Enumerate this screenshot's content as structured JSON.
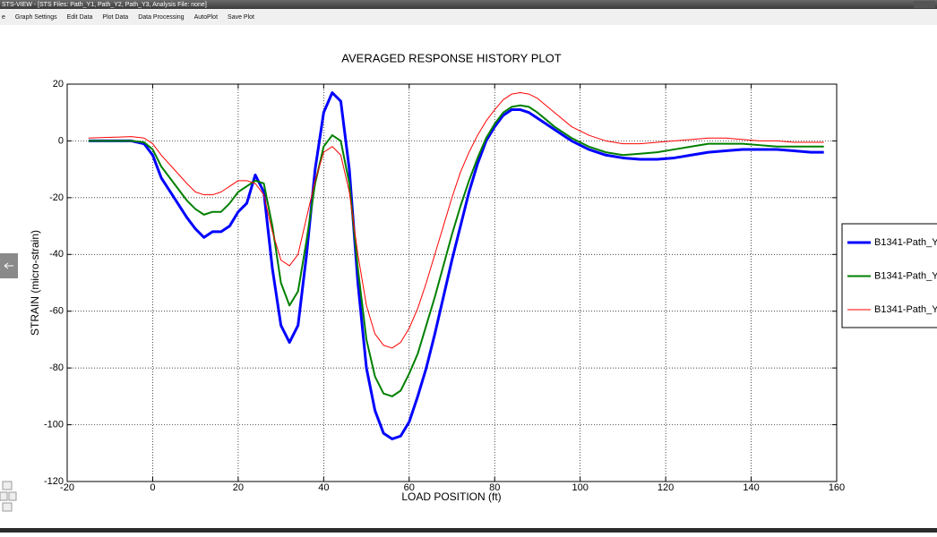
{
  "window": {
    "title": "STS-VIEW - [STS Files: Path_Y1, Path_Y2, Path_Y3,  Analysis File: none]",
    "menu": [
      "e",
      "Graph Settings",
      "Edit Data",
      "Plot Data",
      "Data Processing",
      "AutoPlot",
      "Save Plot"
    ]
  },
  "chart_data": {
    "type": "line",
    "title": "AVERAGED RESPONSE HISTORY PLOT",
    "x_label": "LOAD POSITION (ft)",
    "y_label": "STRAIN (micro-strain)",
    "x": [
      -15,
      -5,
      -2,
      0,
      2,
      5,
      8,
      10,
      12,
      14,
      16,
      18,
      20,
      22,
      24,
      26,
      28,
      30,
      32,
      34,
      36,
      38,
      40,
      42,
      44,
      46,
      48,
      50,
      52,
      54,
      56,
      58,
      60,
      62,
      64,
      66,
      68,
      70,
      72,
      74,
      76,
      78,
      80,
      82,
      84,
      86,
      88,
      90,
      94,
      98,
      102,
      106,
      110,
      114,
      118,
      122,
      126,
      130,
      134,
      138,
      142,
      146,
      150,
      154,
      157
    ],
    "series": [
      {
        "name": "B1341-Path_Y",
        "color": "#0000ff",
        "values": [
          0,
          0,
          -1,
          -5,
          -13,
          -20,
          -27,
          -31,
          -34,
          -32,
          -32,
          -30,
          -25,
          -22,
          -12,
          -18,
          -45,
          -65,
          -71,
          -65,
          -40,
          -10,
          10,
          17,
          14,
          -10,
          -50,
          -80,
          -95,
          -103,
          -105,
          -104,
          -99,
          -90,
          -80,
          -68,
          -55,
          -42,
          -30,
          -18,
          -8,
          0,
          5,
          9,
          11,
          11,
          10,
          8,
          4,
          0,
          -3,
          -5,
          -6,
          -6.5,
          -6.5,
          -6,
          -5,
          -4,
          -3.5,
          -3,
          -3,
          -3,
          -3.5,
          -4,
          -4
        ]
      },
      {
        "name": "B1341-Path_Y",
        "color": "#008000",
        "values": [
          0,
          0,
          -0.5,
          -3,
          -9,
          -15,
          -21,
          -24,
          -26,
          -25,
          -25,
          -22,
          -18,
          -16,
          -14,
          -15,
          -30,
          -50,
          -58,
          -53,
          -35,
          -15,
          -2,
          2,
          0,
          -15,
          -45,
          -70,
          -83,
          -89,
          -90,
          -88,
          -82,
          -75,
          -65,
          -55,
          -44,
          -33,
          -23,
          -14,
          -6,
          1,
          6,
          10,
          12,
          12.5,
          12,
          10,
          5,
          1,
          -2,
          -4,
          -5,
          -4.5,
          -4,
          -3,
          -2,
          -1,
          -1,
          -1,
          -1.5,
          -2,
          -2,
          -2,
          -2
        ]
      },
      {
        "name": "B1341-Path_Y",
        "color": "#ff0000",
        "values": [
          1,
          1.5,
          1,
          -1,
          -5,
          -10,
          -15,
          -18,
          -19,
          -19,
          -18,
          -16,
          -14,
          -14,
          -15,
          -19,
          -32,
          -42,
          -44,
          -40,
          -27,
          -14,
          -4,
          -2,
          -5,
          -18,
          -40,
          -58,
          -68,
          -72,
          -73,
          -71,
          -66,
          -59,
          -50,
          -40,
          -30,
          -20,
          -11,
          -4,
          2,
          7,
          11,
          14.5,
          16.5,
          17,
          16.5,
          15,
          10,
          5,
          2,
          0,
          -1,
          -1,
          -0.5,
          0,
          0.5,
          1,
          1,
          0.5,
          0,
          0,
          -0.5,
          -0.5,
          -0.5
        ]
      }
    ],
    "xlim": [
      -20,
      160
    ],
    "xticks": [
      -20,
      0,
      20,
      40,
      60,
      80,
      100,
      120,
      140,
      160
    ],
    "ylim": [
      -120,
      20
    ],
    "yticks": [
      -120,
      -100,
      -80,
      -60,
      -40,
      -20,
      0,
      20
    ],
    "grid": true,
    "legend": "right"
  }
}
